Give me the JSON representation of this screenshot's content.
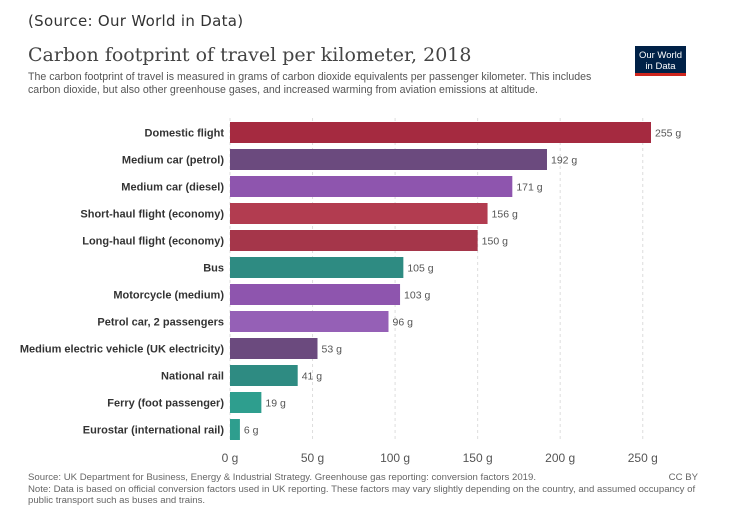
{
  "source_caption": "(Source: Our World in Data)",
  "title": "Carbon footprint of travel per kilometer, 2018",
  "subtitle": "The carbon footprint of travel is measured in grams of carbon dioxide equivalents per passenger kilometer. This includes carbon dioxide, but also other greenhouse gases, and increased warming from aviation emissions at altitude.",
  "logo": {
    "line1": "Our World",
    "line2": "in Data"
  },
  "footer": {
    "source": "Source: UK Department for Business, Energy & Industrial Strategy. Greenhouse gas reporting: conversion factors 2019.",
    "license": "CC BY",
    "note": "Note: Data is based on official conversion factors used in UK reporting. These factors may vary slightly depending on the country, and assumed occupancy of public transport such as buses and trains."
  },
  "colors": {
    "flight": "#a52a40",
    "car_petrol": "#6b4a7e",
    "purple": "#8e55ae",
    "teal": "#2e8b82"
  },
  "chart_data": {
    "type": "bar",
    "orientation": "horizontal",
    "unit_suffix": " g",
    "xlim": [
      0,
      255
    ],
    "xticks": [
      0,
      50,
      100,
      150,
      200,
      250
    ],
    "xtick_labels": [
      "0 g",
      "50 g",
      "100 g",
      "150 g",
      "200 g",
      "250 g"
    ],
    "grid": true,
    "categories": [
      "Domestic flight",
      "Medium car (petrol)",
      "Medium car (diesel)",
      "Short-haul flight (economy)",
      "Long-haul flight (economy)",
      "Bus",
      "Motorcycle (medium)",
      "Petrol car, 2 passengers",
      "Medium electric vehicle (UK electricity)",
      "National rail",
      "Ferry (foot passenger)",
      "Eurostar (international rail)"
    ],
    "values": [
      255,
      192,
      171,
      156,
      150,
      105,
      103,
      96,
      53,
      41,
      19,
      6
    ],
    "value_labels": [
      "255 g",
      "192 g",
      "171 g",
      "156 g",
      "150 g",
      "105 g",
      "103 g",
      "96 g",
      "53 g",
      "41 g",
      "19 g",
      "6 g"
    ],
    "bar_colors": [
      "#a52a40",
      "#6b4a7e",
      "#8e55ae",
      "#b23c50",
      "#a5364a",
      "#2e8b82",
      "#8e55ae",
      "#9560b6",
      "#6b4a7e",
      "#2e8b82",
      "#2e9e8e",
      "#2e9e8e"
    ]
  }
}
